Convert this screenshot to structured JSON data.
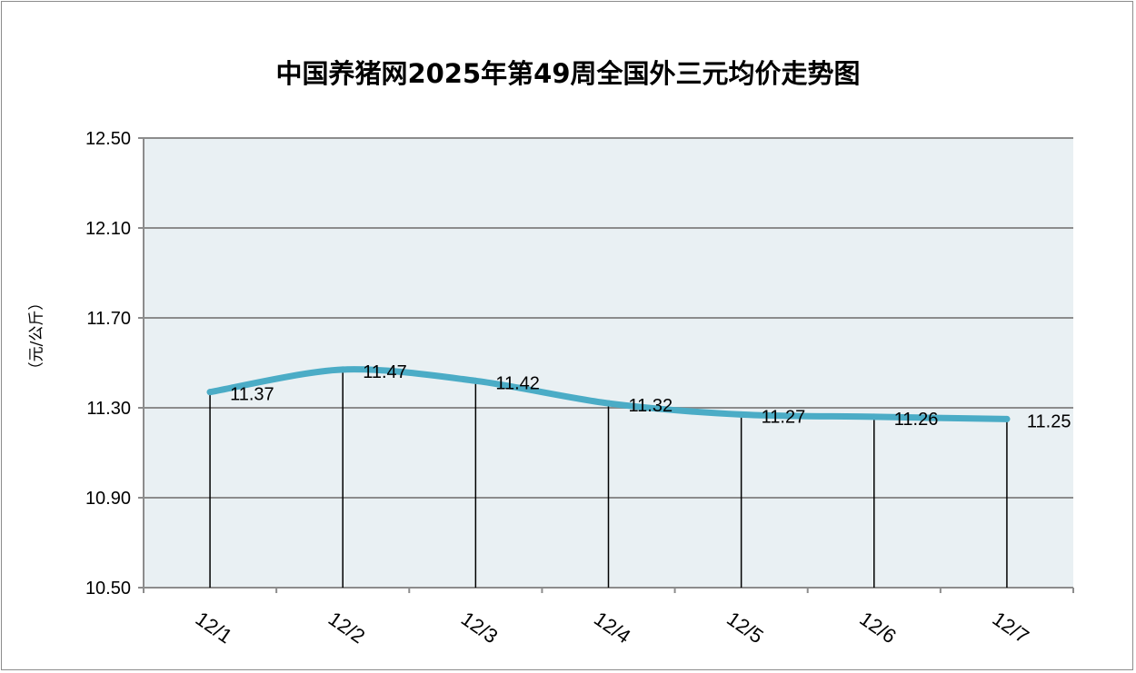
{
  "chart_data": {
    "type": "line",
    "title": "中国养猪网2025年第49周全国外三元均价走势图",
    "ylabel": "（元/公斤）",
    "xlabel": "",
    "categories": [
      "12/1",
      "12/2",
      "12/3",
      "12/4",
      "12/5",
      "12/6",
      "12/7"
    ],
    "series": [
      {
        "values": [
          11.37,
          11.47,
          11.42,
          11.32,
          11.27,
          11.26,
          11.25
        ]
      }
    ],
    "data_labels": [
      "11.37",
      "11.47",
      "11.42",
      "11.32",
      "11.27",
      "11.26",
      "11.25"
    ],
    "yticks": [
      "12.50",
      "12.10",
      "11.70",
      "11.30",
      "10.90",
      "10.50"
    ],
    "ylim": [
      10.5,
      12.5
    ],
    "grid": true,
    "drop_lines": true,
    "colors": {
      "line": "#4bacc6",
      "plot_bg": "#e9f0f3",
      "grid": "#8c8c8c",
      "drop_line": "#000000"
    }
  }
}
